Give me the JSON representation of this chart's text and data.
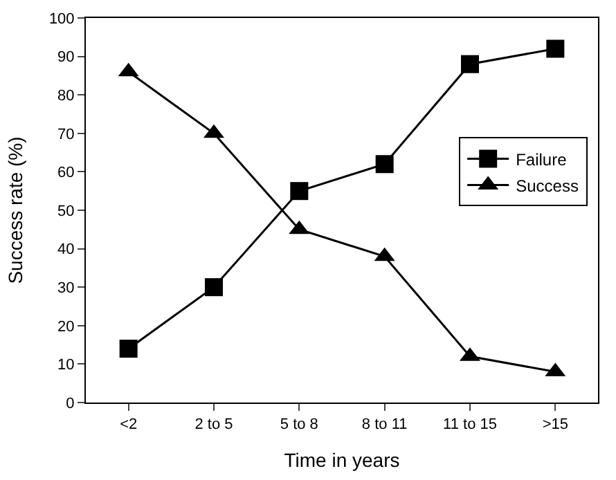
{
  "chart_data": {
    "type": "line",
    "xlabel": "Time in years",
    "ylabel": "Success rate (%)",
    "categories": [
      "<2",
      "2 to 5",
      "5 to 8",
      "8 to 11",
      "11 to 15",
      ">15"
    ],
    "series": [
      {
        "name": "Failure",
        "color": "#000000",
        "marker": "square",
        "values": [
          14,
          30,
          55,
          62,
          88,
          92
        ]
      },
      {
        "name": "Success",
        "color": "#000000",
        "marker": "triangle",
        "values": [
          86,
          70,
          45,
          38,
          12,
          8
        ]
      }
    ],
    "ylim": [
      0,
      100
    ],
    "yticks": [
      0,
      10,
      20,
      30,
      40,
      50,
      60,
      70,
      80,
      90,
      100
    ],
    "legend": "right",
    "line_style": "solid"
  }
}
